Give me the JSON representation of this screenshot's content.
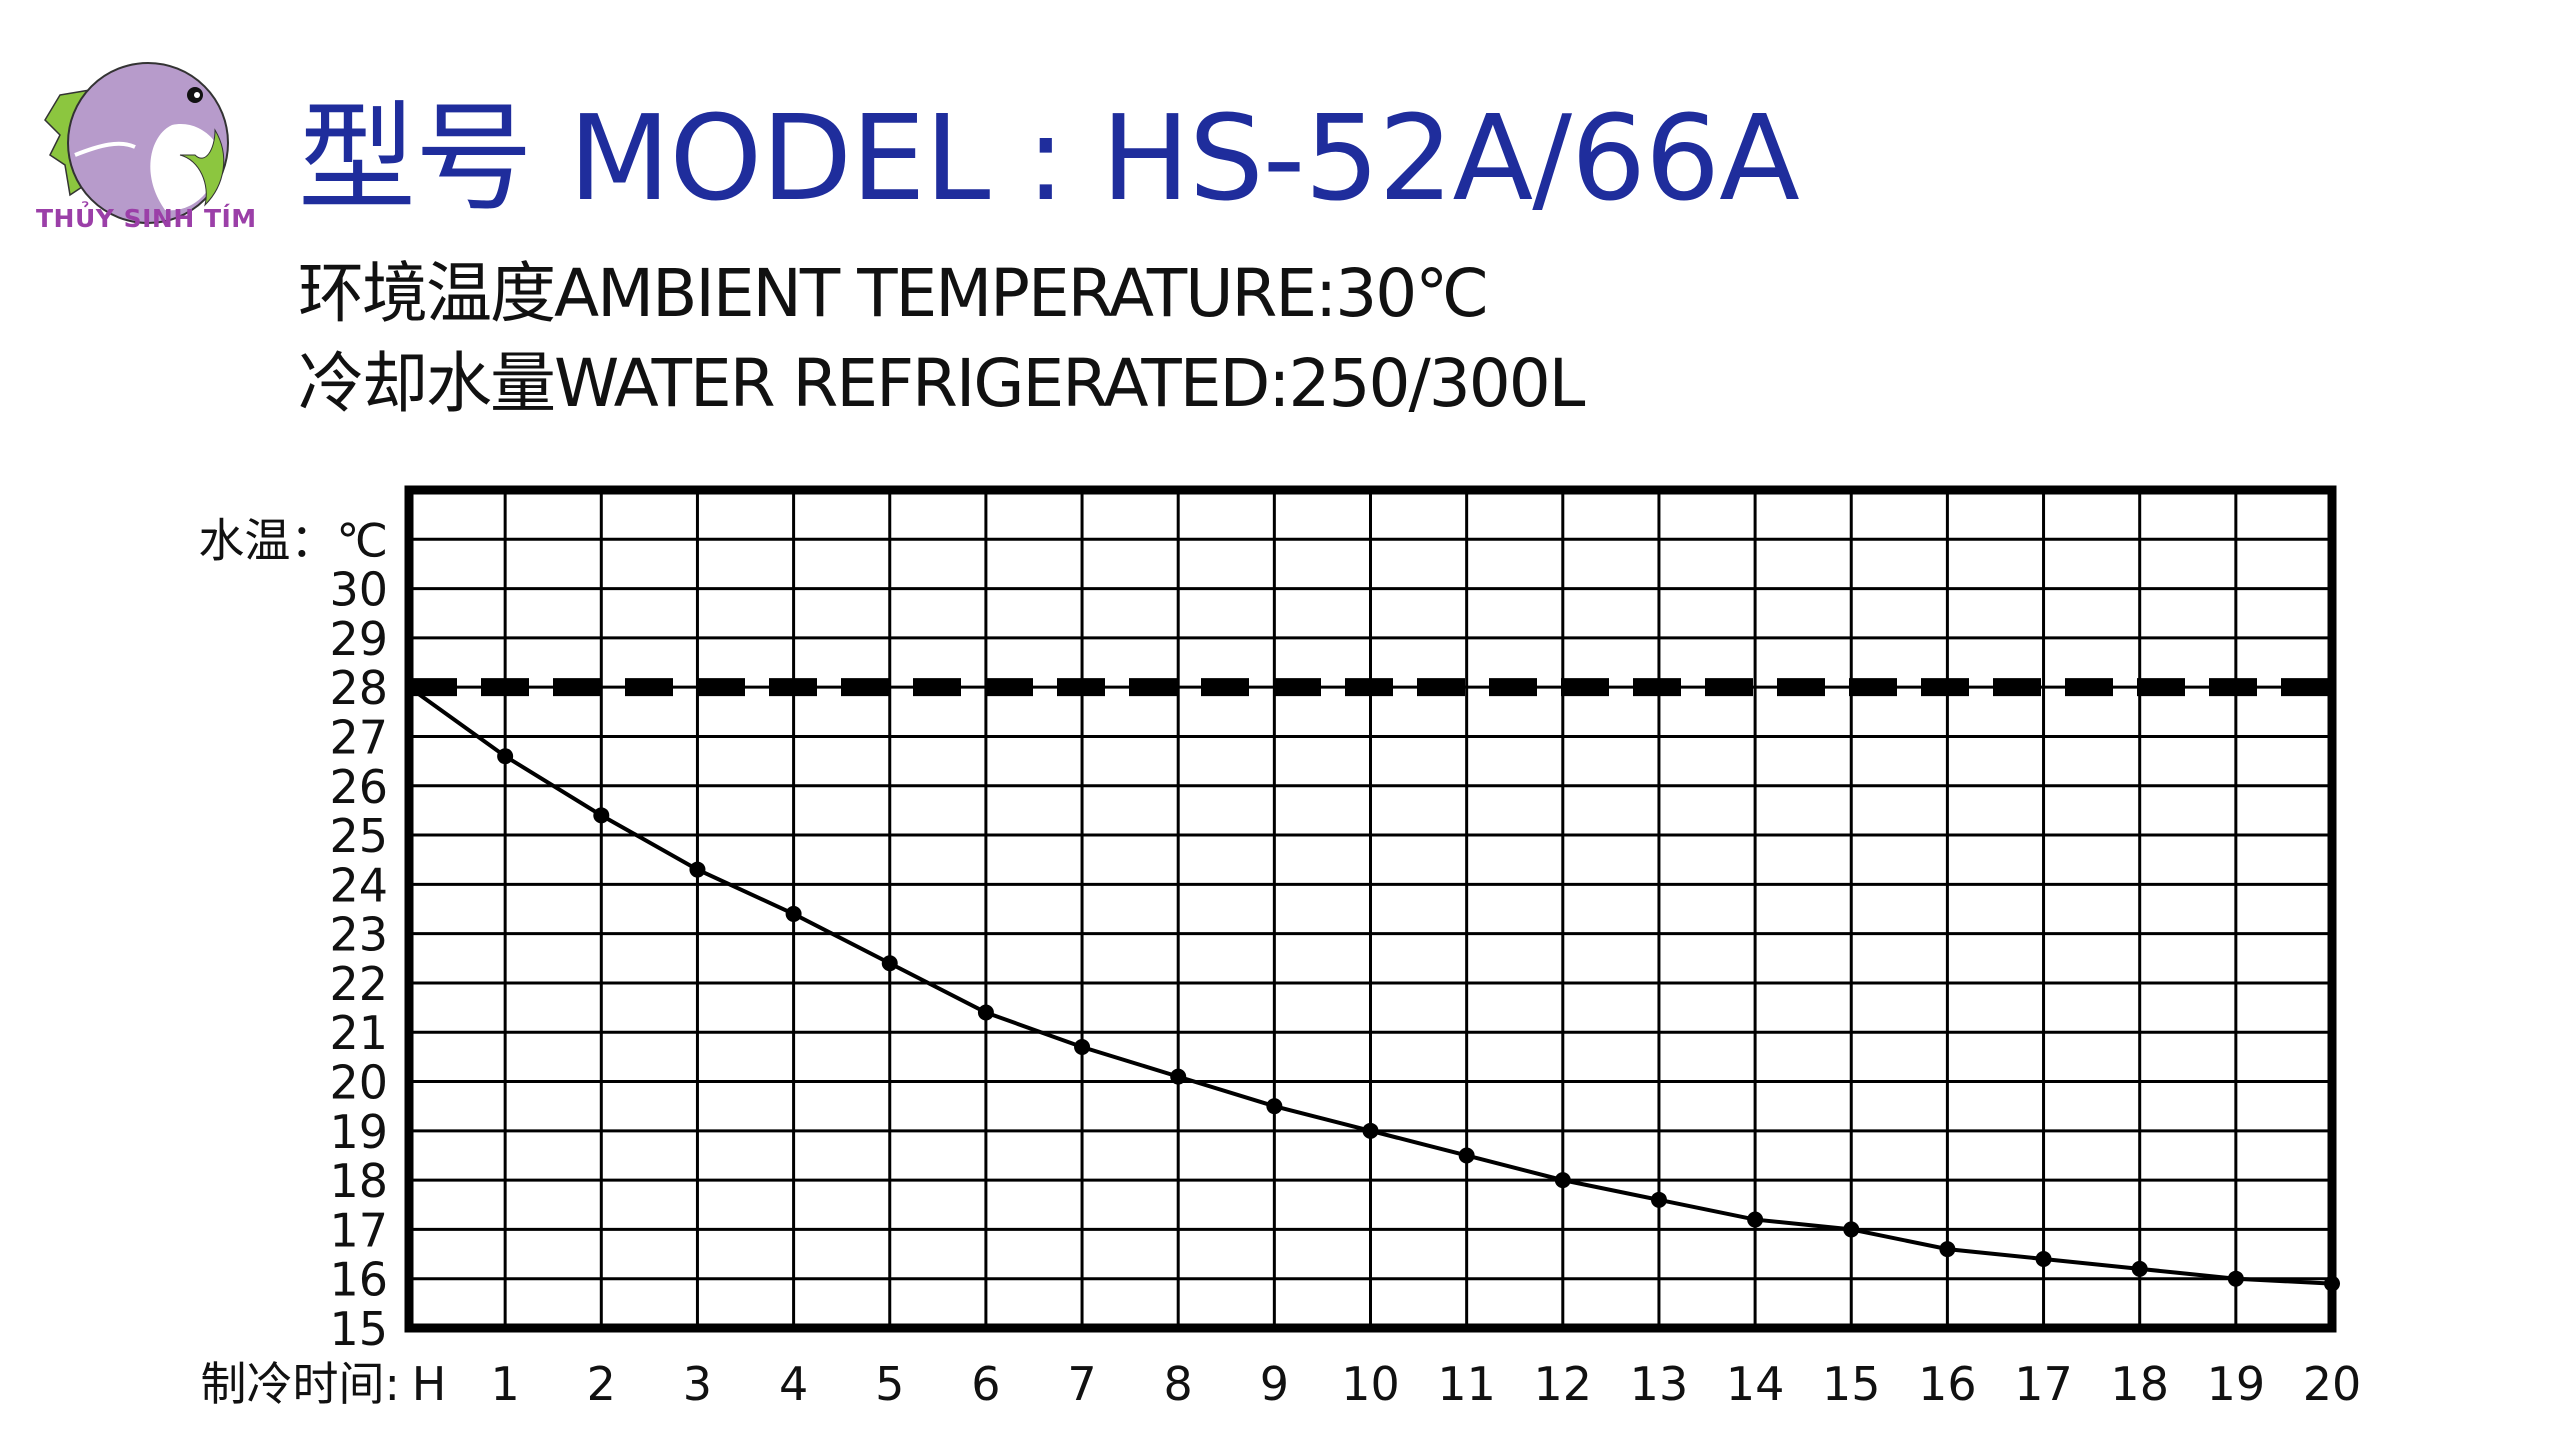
{
  "logo": {
    "text": "THỦY SINH TÍM",
    "colors": {
      "circle": "#b79bcb",
      "leaf": "#8cc63f",
      "text": "#9b3fa8"
    }
  },
  "header": {
    "title": "型号 MODEL : HS-52A/66A",
    "ambient": "环境温度AMBIENT  TEMPERATURE:30℃",
    "water": "冷却水量WATER REFRIGERATED:250/300L"
  },
  "chart_data": {
    "type": "line",
    "ylabel": "水温：℃",
    "xlabel": "制冷时间:",
    "x": [
      "H",
      "1",
      "2",
      "3",
      "4",
      "5",
      "6",
      "7",
      "8",
      "9",
      "10",
      "11",
      "12",
      "13",
      "14",
      "15",
      "16",
      "17",
      "18",
      "19",
      "20"
    ],
    "y_ticks": [
      30,
      29,
      28,
      27,
      26,
      25,
      24,
      23,
      22,
      21,
      20,
      19,
      18,
      17,
      16,
      15
    ],
    "ylim": [
      15,
      32
    ],
    "grid": true,
    "reference_line": {
      "value": 28,
      "style": "dashed"
    },
    "series": [
      {
        "values": [
          28.0,
          26.6,
          25.4,
          24.3,
          23.4,
          22.4,
          21.4,
          20.7,
          20.1,
          19.5,
          19.0,
          18.5,
          18.0,
          17.6,
          17.2,
          17.0,
          16.6,
          16.4,
          16.2,
          16.0,
          15.9
        ]
      }
    ]
  }
}
